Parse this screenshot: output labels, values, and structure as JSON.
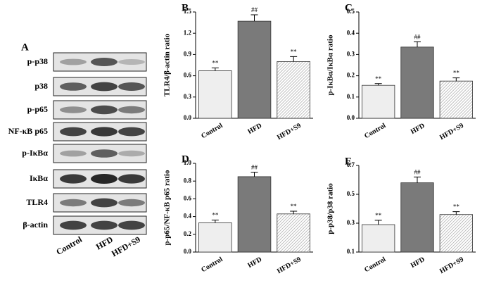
{
  "blot": {
    "label": "A",
    "rows": [
      "p-p38",
      "p38",
      "p-p65",
      "NF-κB p65",
      "p-IκBα",
      "IκBα",
      "TLR4",
      "β-actin"
    ],
    "lanes": [
      "Control",
      "HFD",
      "HFD+S9"
    ]
  },
  "chart_data": [
    {
      "type": "bar",
      "label": "B",
      "ylabel": "TLR4/β-actin ratio",
      "categories": [
        "Control",
        "HFD",
        "HFD+S9"
      ],
      "values": [
        0.67,
        1.37,
        0.8
      ],
      "errors": [
        0.04,
        0.09,
        0.07
      ],
      "annotations": [
        "**",
        "##",
        "**"
      ],
      "colors": [
        "#eeeeee",
        "#7a7a7a",
        "#ffffff"
      ],
      "hatch": [
        false,
        false,
        true
      ],
      "ylim": [
        0,
        1.5
      ],
      "yticks": [
        {
          "value": 0,
          "label": "0.0"
        },
        0.3,
        0.6,
        0.9,
        1.2,
        1.5
      ]
    },
    {
      "type": "bar",
      "label": "C",
      "ylabel": "p-IκBα/IκBα ratio",
      "categories": [
        "Control",
        "HFD",
        "HFD+S9"
      ],
      "values": [
        0.155,
        0.335,
        0.175
      ],
      "errors": [
        0.008,
        0.025,
        0.015
      ],
      "annotations": [
        "**",
        "##",
        "**"
      ],
      "colors": [
        "#eeeeee",
        "#7a7a7a",
        "#ffffff"
      ],
      "hatch": [
        false,
        false,
        true
      ],
      "ylim": [
        0,
        0.5
      ],
      "yticks": [
        {
          "value": 0,
          "label": "0.0"
        },
        0.1,
        0.2,
        0.3,
        0.4,
        0.5
      ]
    },
    {
      "type": "bar",
      "label": "D",
      "ylabel": "p-p65/NF-κB p65 ratio",
      "categories": [
        "Control",
        "HFD",
        "HFD+S9"
      ],
      "values": [
        0.33,
        0.85,
        0.43
      ],
      "errors": [
        0.03,
        0.05,
        0.03
      ],
      "annotations": [
        "**",
        "##",
        "**"
      ],
      "colors": [
        "#eeeeee",
        "#7a7a7a",
        "#ffffff"
      ],
      "hatch": [
        false,
        false,
        true
      ],
      "ylim": [
        0,
        1.0
      ],
      "yticks": [
        {
          "value": 0,
          "label": "0.0"
        },
        0.2,
        0.4,
        0.6,
        0.8,
        {
          "value": 1.0,
          "label": "1.0"
        }
      ]
    },
    {
      "type": "bar",
      "label": "E",
      "ylabel": "p-p38/p38 ratio",
      "categories": [
        "Control",
        "HFD",
        "HFD+S9"
      ],
      "values": [
        0.29,
        0.58,
        0.36
      ],
      "errors": [
        0.03,
        0.04,
        0.02
      ],
      "annotations": [
        "**",
        "##",
        "**"
      ],
      "colors": [
        "#eeeeee",
        "#7a7a7a",
        "#ffffff"
      ],
      "hatch": [
        false,
        false,
        true
      ],
      "ylim": [
        0.1,
        0.7
      ],
      "yticks": [
        0.1,
        0.3,
        0.5,
        0.7
      ]
    }
  ]
}
